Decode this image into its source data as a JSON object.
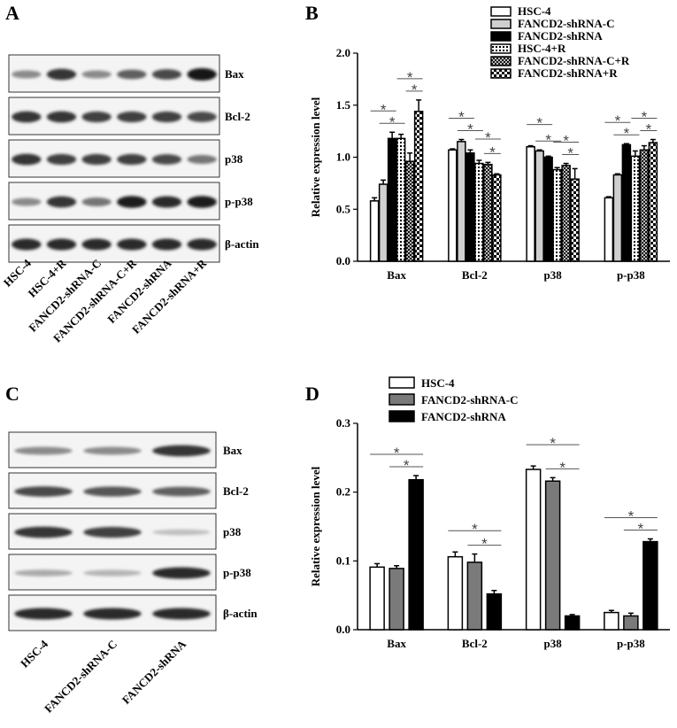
{
  "panels": {
    "A": {
      "letter": "A",
      "bands": [
        "Bax",
        "Bcl-2",
        "p38",
        "p-p38",
        "β-actin"
      ],
      "lanes": [
        "HSC-4",
        "HSC-4+R",
        "FANCD2-shRNA-C",
        "FANCD2-shRNA-C+R",
        "FANCD2-shRNA",
        "FANCD2-shRNA+R"
      ],
      "intensity": {
        "Bax": [
          0.45,
          0.85,
          0.45,
          0.65,
          0.75,
          1.0
        ],
        "Bcl-2": [
          0.85,
          0.85,
          0.8,
          0.8,
          0.8,
          0.75
        ],
        "p38": [
          0.85,
          0.8,
          0.8,
          0.8,
          0.75,
          0.55
        ],
        "p-p38": [
          0.45,
          0.85,
          0.55,
          0.95,
          0.9,
          0.95
        ],
        "β-actin": [
          0.9,
          0.9,
          0.9,
          0.9,
          0.9,
          0.9
        ]
      }
    },
    "C": {
      "letter": "C",
      "bands": [
        "Bax",
        "Bcl-2",
        "p38",
        "p-p38",
        "β-actin"
      ],
      "lanes": [
        "HSC-4",
        "FANCD2-shRNA-C",
        "FANCD2-shRNA"
      ],
      "intensity": {
        "Bax": [
          0.45,
          0.45,
          0.85
        ],
        "Bcl-2": [
          0.75,
          0.7,
          0.65
        ],
        "p38": [
          0.85,
          0.8,
          0.2
        ],
        "p-p38": [
          0.3,
          0.25,
          0.9
        ],
        "β-actin": [
          0.9,
          0.9,
          0.9
        ]
      }
    }
  },
  "chart_data": [
    {
      "panel": "B",
      "type": "bar",
      "title": "",
      "ylabel": "Relative expression level",
      "xlabel": "",
      "ylim": [
        0,
        2.0
      ],
      "yticks": [
        "0.0",
        "0.5",
        "1.0",
        "1.5",
        "2.0"
      ],
      "categories": [
        "Bax",
        "Bcl-2",
        "p38",
        "p-p38"
      ],
      "legend_position": "top-right",
      "series": [
        {
          "name": "HSC-4",
          "pattern": "white",
          "values": [
            0.58,
            1.07,
            1.1,
            0.61
          ],
          "errors": [
            0.03,
            0.01,
            0.01,
            0.01
          ]
        },
        {
          "name": "FANCD2-shRNA-C",
          "pattern": "lightgray",
          "values": [
            0.74,
            1.15,
            1.06,
            0.83
          ],
          "errors": [
            0.04,
            0.02,
            0.01,
            0.01
          ]
        },
        {
          "name": "FANCD2-shRNA",
          "pattern": "black",
          "values": [
            1.18,
            1.04,
            1.0,
            1.12
          ],
          "errors": [
            0.06,
            0.03,
            0.01,
            0.01
          ]
        },
        {
          "name": "HSC-4+R",
          "pattern": "dotted",
          "values": [
            1.18,
            0.94,
            0.88,
            1.01
          ],
          "errors": [
            0.04,
            0.03,
            0.02,
            0.05
          ]
        },
        {
          "name": "FANCD2-shRNA-C+R",
          "pattern": "crosshatch",
          "values": [
            0.96,
            0.93,
            0.92,
            1.07
          ],
          "errors": [
            0.08,
            0.02,
            0.02,
            0.04
          ]
        },
        {
          "name": "FANCD2-shRNA+R",
          "pattern": "checker",
          "values": [
            1.44,
            0.83,
            0.79,
            1.14
          ],
          "errors": [
            0.11,
            0.01,
            0.1,
            0.03
          ]
        }
      ],
      "significance": [
        {
          "category": 0,
          "pairs": [
            [
              0,
              2
            ],
            [
              1,
              3
            ],
            [
              3,
              5
            ],
            [
              4,
              5
            ]
          ]
        },
        {
          "category": 1,
          "pairs": [
            [
              0,
              2
            ],
            [
              1,
              3
            ],
            [
              3,
              5
            ],
            [
              4,
              5
            ]
          ]
        },
        {
          "category": 2,
          "pairs": [
            [
              0,
              2
            ],
            [
              1,
              3
            ],
            [
              3,
              5
            ],
            [
              4,
              5
            ]
          ]
        },
        {
          "category": 3,
          "pairs": [
            [
              0,
              2
            ],
            [
              1,
              3
            ],
            [
              3,
              5
            ],
            [
              4,
              5
            ]
          ]
        }
      ]
    },
    {
      "panel": "D",
      "type": "bar",
      "title": "",
      "ylabel": "Relative expression level",
      "xlabel": "",
      "ylim": [
        0,
        0.3
      ],
      "yticks": [
        "0.0",
        "0.1",
        "0.2",
        "0.3"
      ],
      "categories": [
        "Bax",
        "Bcl-2",
        "p38",
        "p-p38"
      ],
      "legend_position": "top-left",
      "series": [
        {
          "name": "HSC-4",
          "pattern": "white",
          "values": [
            0.091,
            0.106,
            0.233,
            0.025
          ],
          "errors": [
            0.005,
            0.007,
            0.005,
            0.003
          ]
        },
        {
          "name": "FANCD2-shRNA-C",
          "pattern": "gray",
          "values": [
            0.089,
            0.098,
            0.216,
            0.02
          ],
          "errors": [
            0.004,
            0.012,
            0.005,
            0.004
          ]
        },
        {
          "name": "FANCD2-shRNA",
          "pattern": "black",
          "values": [
            0.218,
            0.052,
            0.02,
            0.128
          ],
          "errors": [
            0.006,
            0.005,
            0.002,
            0.004
          ]
        }
      ],
      "significance": [
        {
          "category": 0,
          "pairs": [
            [
              0,
              2
            ],
            [
              1,
              2
            ]
          ]
        },
        {
          "category": 1,
          "pairs": [
            [
              0,
              2
            ],
            [
              1,
              2
            ]
          ]
        },
        {
          "category": 2,
          "pairs": [
            [
              0,
              2
            ],
            [
              1,
              2
            ]
          ]
        },
        {
          "category": 3,
          "pairs": [
            [
              0,
              2
            ],
            [
              1,
              2
            ]
          ]
        }
      ]
    }
  ],
  "labels": {
    "B": "B",
    "D": "D",
    "star": "*"
  }
}
